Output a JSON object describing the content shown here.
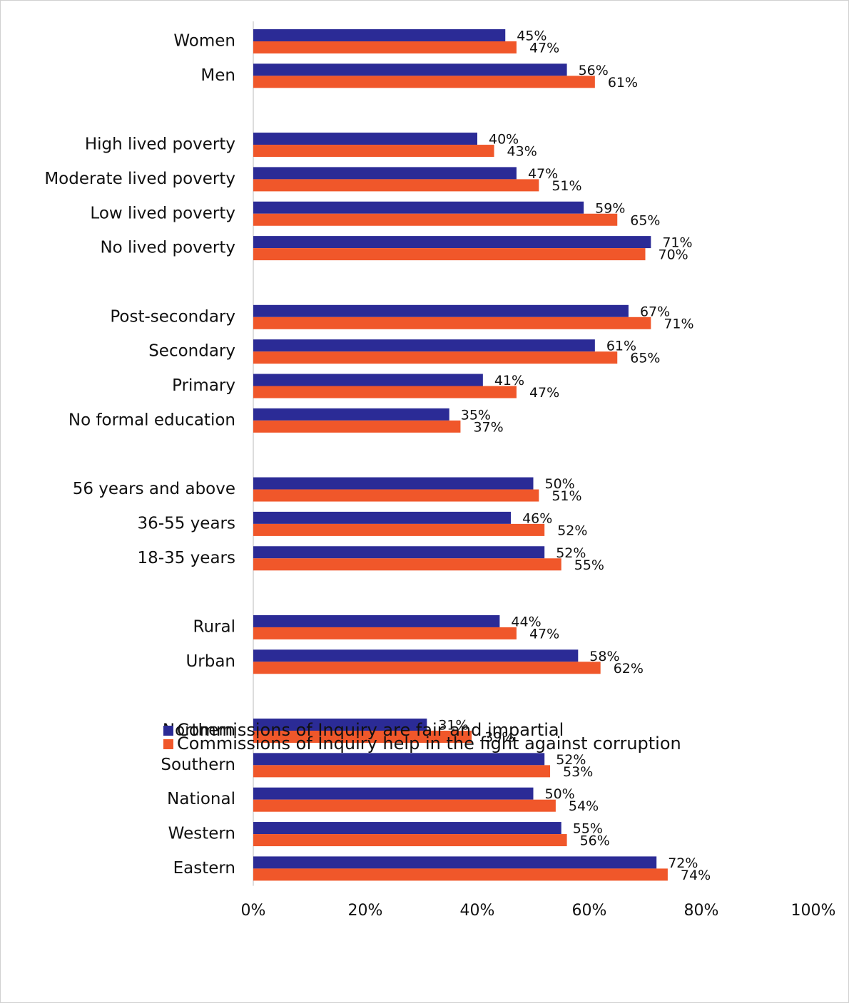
{
  "chart_data": {
    "type": "hbar",
    "categories": [
      "Women",
      "Men",
      null,
      "High lived poverty",
      "Moderate lived poverty",
      "Low lived poverty",
      "No lived poverty",
      null,
      "Post-secondary",
      "Secondary",
      "Primary",
      "No formal education",
      null,
      "56 years and above",
      "36-55 years",
      "18-35 years",
      null,
      "Rural",
      "Urban",
      null,
      "Northern",
      "Southern",
      "National",
      "Western",
      "Eastern"
    ],
    "series": [
      {
        "name": "Commissions of Inquiry are fair and impartial",
        "color": "#2b2b96",
        "values": [
          45,
          56,
          null,
          40,
          47,
          59,
          71,
          null,
          67,
          61,
          41,
          35,
          null,
          50,
          46,
          52,
          null,
          44,
          58,
          null,
          31,
          52,
          50,
          55,
          72
        ],
        "value_labels": [
          "45%",
          "56%",
          null,
          "40%",
          "47%",
          "59%",
          "71%",
          null,
          "67%",
          "61%",
          "41%",
          "35%",
          null,
          "50%",
          "46%",
          "52%",
          null,
          "44%",
          "58%",
          null,
          "31%",
          "52%",
          "50%",
          "55%",
          "72%"
        ]
      },
      {
        "name": "Commissions of Inquiry help in the fight against corruption",
        "color": "#f0572a",
        "values": [
          47,
          61,
          null,
          43,
          51,
          65,
          70,
          null,
          71,
          65,
          47,
          37,
          null,
          51,
          52,
          55,
          null,
          47,
          62,
          null,
          39,
          53,
          54,
          56,
          74
        ],
        "value_labels": [
          "47%",
          "61%",
          null,
          "43%",
          "51%",
          "65%",
          "70%",
          null,
          "71%",
          "65%",
          "47%",
          "37%",
          null,
          "51%",
          "52%",
          "55%",
          null,
          "47%",
          "62%",
          null,
          "39%",
          "53%",
          "54%",
          "56%",
          "74%"
        ]
      }
    ],
    "xlim": [
      0,
      100
    ],
    "xticks": [
      {
        "value": 0,
        "label": "0%"
      },
      {
        "value": 20,
        "label": "20%"
      },
      {
        "value": 40,
        "label": "40%"
      },
      {
        "value": 60,
        "label": "60%"
      },
      {
        "value": 80,
        "label": "80%"
      },
      {
        "value": 100,
        "label": "100%"
      }
    ],
    "legend": "bottom"
  }
}
